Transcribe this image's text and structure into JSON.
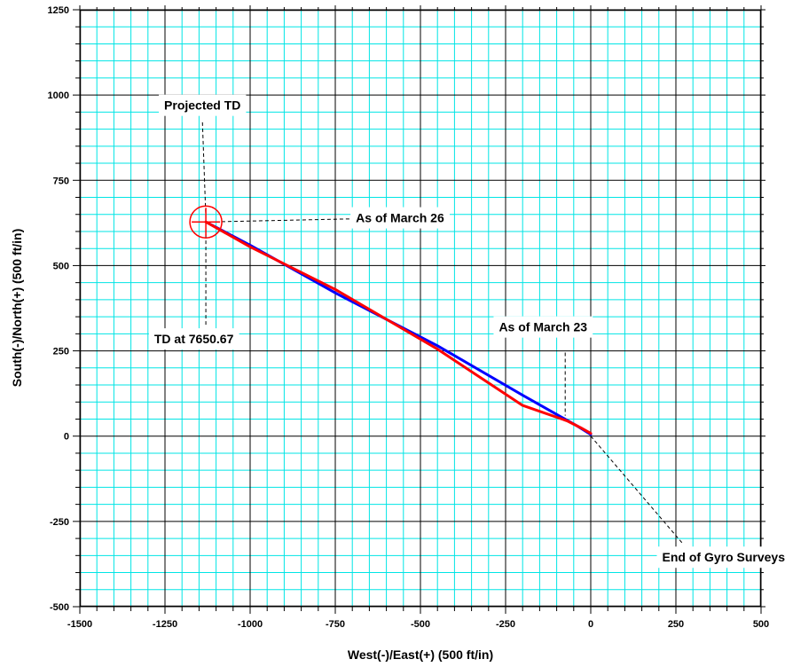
{
  "chart_data": {
    "type": "line",
    "xlabel": "West(-)/East(+) (500 ft/in)",
    "ylabel": "South(-)/North(+) (500 ft/in)",
    "xlim": [
      -1500,
      500
    ],
    "ylim": [
      -500,
      1250
    ],
    "major_step": 250,
    "minor_step": 50,
    "grid": true,
    "x_ticks": [
      -1500,
      -1250,
      -1000,
      -750,
      -500,
      -250,
      0,
      250,
      500
    ],
    "y_ticks": [
      -500,
      -250,
      0,
      250,
      500,
      750,
      1000,
      1250
    ],
    "series": [
      {
        "color": "#0000ff",
        "x": [
          0,
          -40,
          -200,
          -450,
          -750,
          -1000,
          -1130
        ],
        "y": [
          5,
          30,
          120,
          265,
          420,
          560,
          628
        ]
      },
      {
        "color": "#ff0000",
        "x": [
          0,
          -30,
          -70,
          -200,
          -450,
          -750,
          -1000,
          -1130
        ],
        "y": [
          8,
          25,
          45,
          90,
          255,
          430,
          555,
          628
        ]
      }
    ],
    "annotations": [
      {
        "text": "Projected TD",
        "x": -1140,
        "y": 970
      },
      {
        "text": "As of March 26",
        "x": -560,
        "y": 640
      },
      {
        "text": "TD at 7650.67",
        "x": -1165,
        "y": 285
      },
      {
        "text": "As of March 23",
        "x": -140,
        "y": 320
      },
      {
        "text": "End of Gyro Surveys",
        "x": 390,
        "y": -355
      }
    ],
    "marker": {
      "x": -1130,
      "y": 628,
      "color": "#ff0000"
    }
  },
  "colors": {
    "minor_grid": "#00e5e5",
    "major_grid": "#000000",
    "leader_line": "#000000"
  }
}
